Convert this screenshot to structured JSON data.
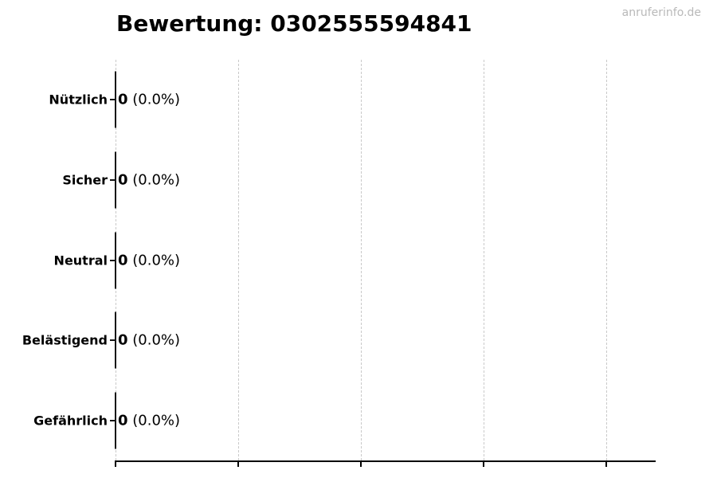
{
  "title": "Bewertung: 0302555594841",
  "watermark": "anruferinfo.de",
  "chart_data": {
    "type": "bar",
    "orientation": "horizontal",
    "title": "Bewertung: 0302555594841",
    "categories": [
      "Nützlich",
      "Sicher",
      "Neutral",
      "Belästigend",
      "Gefährlich"
    ],
    "values": [
      0,
      0,
      0,
      0,
      0
    ],
    "value_labels": [
      {
        "number": "0",
        "percent": "(0.0%)"
      },
      {
        "number": "0",
        "percent": "(0.0%)"
      },
      {
        "number": "0",
        "percent": "(0.0%)"
      },
      {
        "number": "0",
        "percent": "(0.0%)"
      },
      {
        "number": "0",
        "percent": "(0.0%)"
      }
    ],
    "xlabel": "",
    "ylabel": "",
    "xlim": [
      0,
      1.1
    ],
    "x_ticks": [
      0,
      0.25,
      0.5,
      0.75,
      1.0
    ],
    "x_tick_labels": [],
    "grid": true,
    "grid_style": "dashed-vertical",
    "legend": "none",
    "colors": {
      "background": "#ffffff",
      "text": "#000000",
      "bar_edge": "#141414",
      "grid": "#c9c9c9",
      "axis": "#000000",
      "watermark": "#b9b9b9"
    }
  }
}
